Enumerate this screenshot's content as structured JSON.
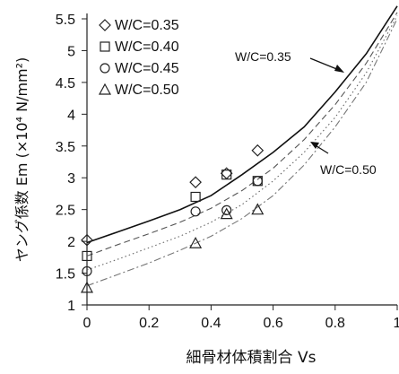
{
  "chart_data": {
    "type": "scatter",
    "xlabel": "細骨材体積割合 Vs",
    "ylabel": "ヤング係数 Em (×10⁴ N/mm²)",
    "xlim": [
      0,
      1
    ],
    "ylim": [
      1,
      5.5
    ],
    "x_ticks": [
      "0",
      "0.2",
      "0.4",
      "0.6",
      "0.8",
      "1"
    ],
    "y_ticks": [
      "1",
      "1.5",
      "2",
      "2.5",
      "3",
      "3.5",
      "4",
      "4.5",
      "5",
      "5.5"
    ],
    "x_tick_values": [
      0,
      0.2,
      0.4,
      0.6,
      0.8,
      1
    ],
    "y_tick_values": [
      1,
      1.5,
      2,
      2.5,
      3,
      3.5,
      4,
      4.5,
      5,
      5.5
    ],
    "grid": false,
    "legend_position": "top-left",
    "series": [
      {
        "name": "W/C=0.35",
        "marker": "diamond",
        "x": [
          0,
          0.35,
          0.45,
          0.55
        ],
        "y": [
          2.02,
          2.93,
          3.07,
          3.43
        ],
        "curve": {
          "x": [
            0,
            0.1,
            0.2,
            0.3,
            0.4,
            0.5,
            0.6,
            0.7,
            0.8,
            0.9,
            1.0
          ],
          "y": [
            1.98,
            2.15,
            2.32,
            2.5,
            2.72,
            3.05,
            3.4,
            3.8,
            4.35,
            4.95,
            5.7
          ]
        },
        "curve_style": "solid"
      },
      {
        "name": "W/C=0.40",
        "marker": "square",
        "x": [
          0,
          0.35,
          0.45,
          0.55
        ],
        "y": [
          1.77,
          2.7,
          3.05,
          2.95
        ],
        "curve": {
          "x": [
            0,
            0.1,
            0.2,
            0.3,
            0.4,
            0.5,
            0.6,
            0.7,
            0.8,
            0.9,
            1.0
          ],
          "y": [
            1.77,
            1.95,
            2.12,
            2.3,
            2.52,
            2.8,
            3.15,
            3.6,
            4.15,
            4.8,
            5.6
          ]
        },
        "curve_style": "dashed"
      },
      {
        "name": "W/C=0.45",
        "marker": "circle",
        "x": [
          0,
          0.35,
          0.45,
          0.55
        ],
        "y": [
          1.53,
          2.47,
          2.49,
          2.95
        ],
        "curve": {
          "x": [
            0,
            0.1,
            0.2,
            0.3,
            0.4,
            0.5,
            0.6,
            0.7,
            0.8,
            0.9,
            1.0
          ],
          "y": [
            1.55,
            1.72,
            1.9,
            2.08,
            2.3,
            2.58,
            2.95,
            3.4,
            3.95,
            4.65,
            5.55
          ]
        },
        "curve_style": "dotted"
      },
      {
        "name": "W/C=0.50",
        "marker": "triangle",
        "x": [
          0,
          0.35,
          0.45,
          0.55
        ],
        "y": [
          1.27,
          1.97,
          2.43,
          2.5
        ],
        "curve": {
          "x": [
            0,
            0.1,
            0.2,
            0.3,
            0.4,
            0.5,
            0.6,
            0.7,
            0.8,
            0.9,
            1.0
          ],
          "y": [
            1.3,
            1.48,
            1.66,
            1.86,
            2.08,
            2.36,
            2.72,
            3.2,
            3.8,
            4.5,
            5.5
          ]
        },
        "curve_style": "dash-dot"
      }
    ],
    "annotations": [
      {
        "text": "W/C=0.35",
        "points_to_series": 0
      },
      {
        "text": "W/C=0.50",
        "points_to_series": 3
      }
    ]
  }
}
